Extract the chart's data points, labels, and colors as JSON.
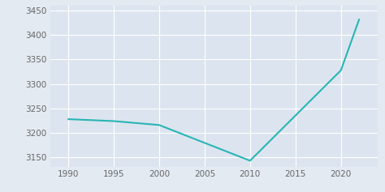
{
  "years": [
    1990,
    1995,
    2000,
    2010,
    2020,
    2022
  ],
  "population": [
    3228,
    3224,
    3216,
    3143,
    3328,
    3432
  ],
  "line_color": "#2ab5b5",
  "bg_color": "#e3eaf2",
  "plot_bg_color": "#dce5ef",
  "xlim": [
    1988,
    2024
  ],
  "ylim": [
    3130,
    3460
  ],
  "yticks": [
    3150,
    3200,
    3250,
    3300,
    3350,
    3400,
    3450
  ],
  "xticks": [
    1990,
    1995,
    2000,
    2005,
    2010,
    2015,
    2020
  ],
  "tick_color": "#666666",
  "grid_color": "#ffffff",
  "linewidth": 1.5,
  "tick_fontsize": 7.5
}
